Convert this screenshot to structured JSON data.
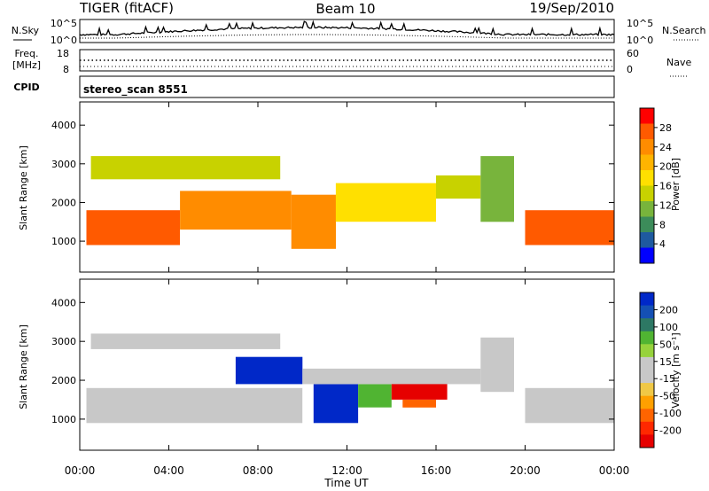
{
  "header": {
    "station": "TIGER (fitACF)",
    "beam": "Beam 10",
    "date": "19/Sep/2010"
  },
  "noise_panel": {
    "left_label": "N.Sky",
    "right_label": "N.Search",
    "ticks_left": [
      "10^5",
      "10^0"
    ],
    "ticks_right": [
      "10^5",
      "10^0"
    ]
  },
  "freq_panel": {
    "left_label_line1": "Freq.",
    "left_label_line2": "[MHz]",
    "right_label": "Nave",
    "ticks_left": [
      "18",
      "8"
    ],
    "ticks_right": [
      "60",
      "0"
    ]
  },
  "cpid_panel": {
    "label": "CPID",
    "text": "stereo_scan 8551"
  },
  "x_axis": {
    "label": "Time UT",
    "ticks": [
      "00:00",
      "04:00",
      "08:00",
      "12:00",
      "16:00",
      "20:00",
      "00:00"
    ]
  },
  "power_colorbar": {
    "label": "Power [dB]",
    "ticks": [
      "28",
      "24",
      "20",
      "16",
      "12",
      "8",
      "4"
    ],
    "colors": [
      "#ff0000",
      "#ff5a00",
      "#ff8c00",
      "#ffb400",
      "#ffe000",
      "#c8d200",
      "#78b43c",
      "#3c8c5a",
      "#1e5aa0",
      "#0000ff"
    ]
  },
  "velocity_colorbar": {
    "label": "Velocity [m s⁻¹]",
    "ticks": [
      "200",
      "100",
      "50",
      "15",
      "-15",
      "-50",
      "-100",
      "-200"
    ],
    "colors": [
      "#0028c8",
      "#1450b4",
      "#2d7864",
      "#50b432",
      "#96d23c",
      "#c8c8c8",
      "#c8c8c8",
      "#f0c846",
      "#ffa000",
      "#ff6400",
      "#ff2800",
      "#e60000"
    ]
  },
  "chart_data": [
    {
      "type": "heatmap",
      "title": "Power",
      "xlabel": "Time UT",
      "ylabel": "Slant Range [km]",
      "yticks": [
        "1000",
        "2000",
        "3000",
        "4000"
      ],
      "ylim": [
        200,
        4600
      ],
      "xlim": [
        "00:00",
        "24:00"
      ],
      "colorbar_range": [
        0,
        30
      ],
      "colorbar_label": "Power [dB]",
      "regions": [
        {
          "t0": 0.3,
          "t1": 4.5,
          "r0": 900,
          "r1": 1800,
          "value": 28
        },
        {
          "t0": 4.5,
          "t1": 9.5,
          "r0": 1300,
          "r1": 2300,
          "value": 22
        },
        {
          "t0": 9.5,
          "t1": 11.5,
          "r0": 800,
          "r1": 2200,
          "value": 25
        },
        {
          "t0": 11.5,
          "t1": 16.0,
          "r0": 1500,
          "r1": 2500,
          "value": 18
        },
        {
          "t0": 16.0,
          "t1": 18.0,
          "r0": 2100,
          "r1": 2700,
          "value": 14
        },
        {
          "t0": 18.0,
          "t1": 19.5,
          "r0": 1500,
          "r1": 3200,
          "value": 10
        },
        {
          "t0": 20.0,
          "t1": 24.0,
          "r0": 900,
          "r1": 1800,
          "value": 27
        },
        {
          "t0": 0.5,
          "t1": 9.0,
          "r0": 2600,
          "r1": 3200,
          "value": 12
        }
      ]
    },
    {
      "type": "heatmap",
      "title": "Velocity",
      "xlabel": "Time UT",
      "ylabel": "Slant Range [km]",
      "yticks": [
        "1000",
        "2000",
        "3000",
        "4000"
      ],
      "ylim": [
        200,
        4600
      ],
      "xlim": [
        "00:00",
        "24:00"
      ],
      "colorbar_range": [
        -200,
        200
      ],
      "colorbar_label": "Velocity [m s⁻¹]",
      "regions": [
        {
          "t0": 0.3,
          "t1": 10.0,
          "r0": 900,
          "r1": 1800,
          "value": 0
        },
        {
          "t0": 7.0,
          "t1": 10.0,
          "r0": 1900,
          "r1": 2600,
          "value": 180
        },
        {
          "t0": 10.5,
          "t1": 12.5,
          "r0": 900,
          "r1": 1900,
          "value": 200
        },
        {
          "t0": 12.5,
          "t1": 14.0,
          "r0": 1300,
          "r1": 1900,
          "value": 60
        },
        {
          "t0": 14.0,
          "t1": 16.5,
          "r0": 1500,
          "r1": 2000,
          "value": -200
        },
        {
          "t0": 14.5,
          "t1": 16.0,
          "r0": 1300,
          "r1": 1500,
          "value": -80
        },
        {
          "t0": 10.0,
          "t1": 18.0,
          "r0": 1900,
          "r1": 2300,
          "value": 0
        },
        {
          "t0": 18.0,
          "t1": 19.5,
          "r0": 1700,
          "r1": 3100,
          "value": 0
        },
        {
          "t0": 20.0,
          "t1": 24.0,
          "r0": 900,
          "r1": 1800,
          "value": 0
        },
        {
          "t0": 0.5,
          "t1": 9.0,
          "r0": 2800,
          "r1": 3200,
          "value": 0
        }
      ]
    }
  ]
}
